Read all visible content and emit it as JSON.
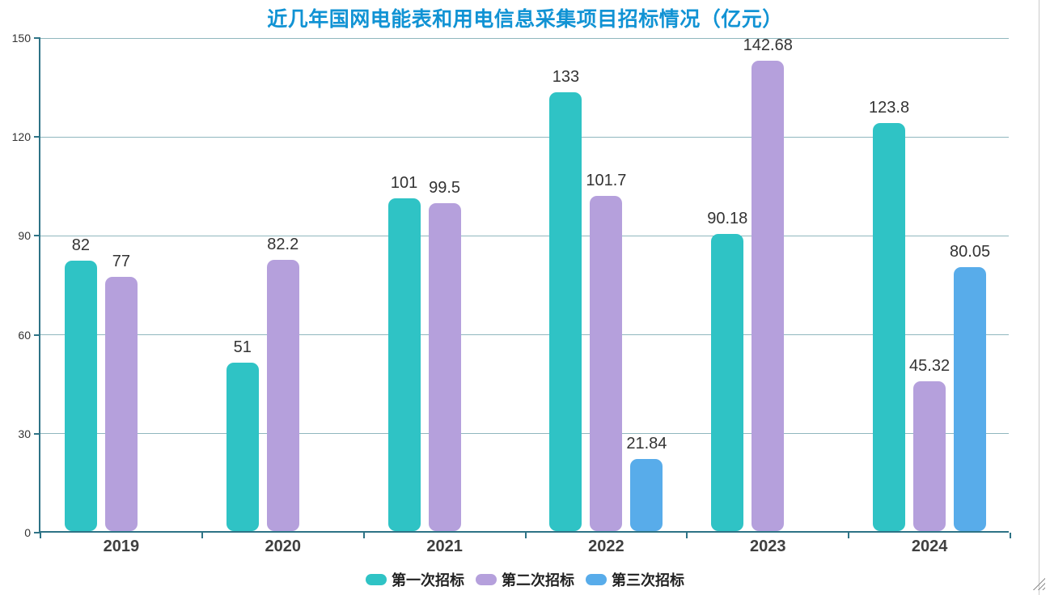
{
  "title": "近几年国网电能表和用电信息采集项目招标情况（亿元）",
  "chart_data": {
    "type": "bar",
    "title": "近几年国网电能表和用电信息采集项目招标情况（亿元）",
    "categories": [
      "2019",
      "2020",
      "2021",
      "2022",
      "2023",
      "2024"
    ],
    "series": [
      {
        "name": "第一次招标",
        "color": "#2FC3C5",
        "values": [
          82,
          51,
          101,
          133,
          90.18,
          123.8
        ]
      },
      {
        "name": "第二次招标",
        "color": "#B5A0DC",
        "values": [
          77,
          82.2,
          99.5,
          101.7,
          142.68,
          45.32
        ]
      },
      {
        "name": "第三次招标",
        "color": "#58ACEA",
        "values": [
          null,
          null,
          null,
          21.84,
          null,
          80.05
        ]
      }
    ],
    "xlabel": "",
    "ylabel": "",
    "ylim": [
      0,
      150
    ],
    "yticks": [
      0,
      30,
      60,
      90,
      120,
      150
    ],
    "grid": true,
    "legend_position": "bottom"
  },
  "colors": {
    "title": "#1193D4",
    "axis": "#2E7386",
    "gridline": "#6B9FA8",
    "value_label": "#333333",
    "category_label": "#3F3F3F"
  }
}
